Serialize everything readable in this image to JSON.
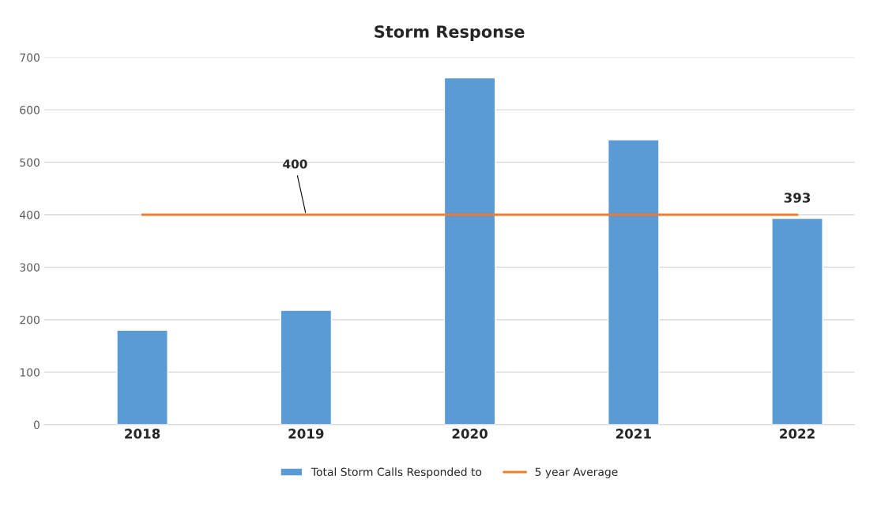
{
  "chart_data": {
    "type": "bar",
    "title": "Storm Response",
    "categories": [
      "2018",
      "2019",
      "2020",
      "2021",
      "2022"
    ],
    "series": [
      {
        "name": "Total Storm Calls Responded to",
        "color": "#5b9bd5",
        "values": [
          180,
          218,
          661,
          543,
          393
        ],
        "value_labels": [
          null,
          null,
          null,
          null,
          "393"
        ]
      },
      {
        "name": "5 year Average",
        "type": "line",
        "color": "#ed7d31",
        "values": [
          400,
          400,
          400,
          400,
          400
        ],
        "value_labels": [
          null,
          "400",
          null,
          null,
          null
        ]
      }
    ],
    "ylim": [
      0,
      700
    ],
    "yticks": [
      0,
      100,
      200,
      300,
      400,
      500,
      600,
      700
    ],
    "grid": "y",
    "legend": "bottom",
    "marker": "none",
    "line_style": "solid"
  }
}
